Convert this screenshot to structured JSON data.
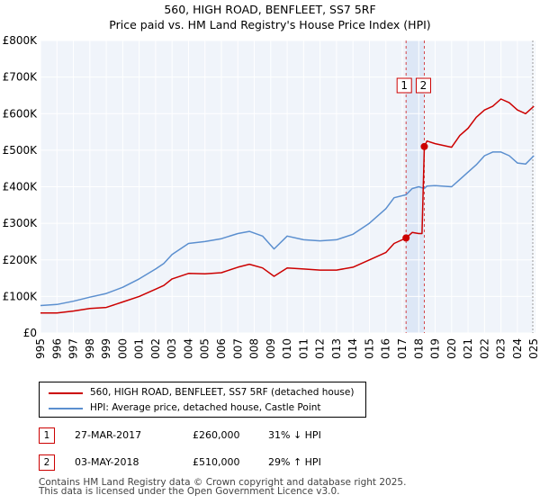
{
  "title": {
    "line1": "560, HIGH ROAD, BENFLEET, SS7 5RF",
    "line2": "Price paid vs. HM Land Registry's House Price Index (HPI)"
  },
  "chart_data": {
    "type": "line",
    "title": "560, HIGH ROAD, BENFLEET, SS7 5RF — Price paid vs. HM Land Registry's House Price Index (HPI)",
    "xlabel": "",
    "ylabel": "",
    "xlim": [
      1995,
      2025.1
    ],
    "ylim": [
      0,
      800000
    ],
    "yticks": [
      0,
      100000,
      200000,
      300000,
      400000,
      500000,
      600000,
      700000,
      800000
    ],
    "ytick_labels": [
      "£0",
      "£100K",
      "£200K",
      "£300K",
      "£400K",
      "£500K",
      "£600K",
      "£700K",
      "£800K"
    ],
    "xticks": [
      1995,
      1996,
      1997,
      1998,
      1999,
      2000,
      2001,
      2002,
      2003,
      2004,
      2005,
      2006,
      2007,
      2008,
      2009,
      2010,
      2011,
      2012,
      2013,
      2014,
      2015,
      2016,
      2017,
      2018,
      2019,
      2020,
      2021,
      2022,
      2023,
      2024,
      2025
    ],
    "xtick_labels": [
      "1995",
      "1996",
      "1997",
      "1998",
      "1999",
      "2000",
      "2001",
      "2002",
      "2003",
      "2004",
      "2005",
      "2006",
      "2007",
      "2008",
      "2009",
      "2010",
      "2011",
      "2012",
      "2013",
      "2014",
      "2015",
      "2016",
      "2017",
      "2018",
      "2019",
      "2020",
      "2021",
      "2022",
      "2023",
      "2024",
      "2025"
    ],
    "grid": true,
    "series": [
      {
        "name": "560, HIGH ROAD, BENFLEET, SS7 5RF (detached house)",
        "color": "#cc0000",
        "x": [
          1995,
          1996,
          1997,
          1998,
          1999,
          2000,
          2001,
          2002,
          2002.5,
          2003,
          2004,
          2005,
          2006,
          2007,
          2007.7,
          2008.5,
          2009.2,
          2010,
          2011,
          2012,
          2013,
          2014,
          2015,
          2016,
          2016.5,
          2017.23,
          2017.6,
          2018.0,
          2018.2,
          2018.34,
          2018.5,
          2019,
          2020,
          2020.5,
          2021,
          2021.5,
          2022,
          2022.5,
          2023,
          2023.5,
          2024,
          2024.5,
          2025
        ],
        "y": [
          55000,
          55000,
          60000,
          67000,
          70000,
          85000,
          100000,
          120000,
          130000,
          148000,
          163000,
          162000,
          165000,
          180000,
          188000,
          178000,
          155000,
          178000,
          175000,
          172000,
          172000,
          180000,
          200000,
          220000,
          245000,
          260000,
          275000,
          272000,
          272000,
          510000,
          525000,
          518000,
          508000,
          540000,
          560000,
          590000,
          610000,
          620000,
          640000,
          630000,
          610000,
          600000,
          620000
        ]
      },
      {
        "name": "HPI: Average price, detached house, Castle Point",
        "color": "#5b8fcf",
        "x": [
          1995,
          1996,
          1997,
          1998,
          1999,
          2000,
          2001,
          2002,
          2002.5,
          2003,
          2004,
          2005,
          2006,
          2007,
          2007.7,
          2008.5,
          2009.2,
          2010,
          2011,
          2012,
          2013,
          2014,
          2015,
          2016,
          2016.5,
          2017.23,
          2017.6,
          2018.0,
          2018.34,
          2018.5,
          2019,
          2020,
          2020.5,
          2021,
          2021.5,
          2022,
          2022.5,
          2023,
          2023.5,
          2024,
          2024.5,
          2025
        ],
        "y": [
          75000,
          78000,
          87000,
          98000,
          108000,
          125000,
          148000,
          175000,
          190000,
          215000,
          245000,
          250000,
          258000,
          272000,
          278000,
          265000,
          230000,
          265000,
          255000,
          252000,
          255000,
          270000,
          300000,
          340000,
          370000,
          378000,
          395000,
          400000,
          395000,
          402000,
          403000,
          400000,
          420000,
          440000,
          460000,
          485000,
          495000,
          495000,
          485000,
          465000,
          462000,
          485000
        ]
      }
    ],
    "events": [
      {
        "label": "1",
        "x": 2017.23,
        "y": 260000
      },
      {
        "label": "2",
        "x": 2018.34,
        "y": 510000
      }
    ]
  },
  "legend": {
    "series1_label": "560, HIGH ROAD, BENFLEET, SS7 5RF (detached house)",
    "series2_label": "HPI: Average price, detached house, Castle Point"
  },
  "transactions": [
    {
      "num": "1",
      "date": "27-MAR-2017",
      "price": "£260,000",
      "hpi": "31% ↓ HPI"
    },
    {
      "num": "2",
      "date": "03-MAY-2018",
      "price": "£510,000",
      "hpi": "29% ↑ HPI"
    }
  ],
  "footer": {
    "line1": "Contains HM Land Registry data © Crown copyright and database right 2025.",
    "line2": "This data is licensed under the Open Government Licence v3.0."
  },
  "colors": {
    "red": "#cc0000",
    "blue": "#5b8fcf",
    "plot_bg": "#f0f4fa",
    "grid": "#ffffff",
    "highlight": "#dde7f6"
  }
}
